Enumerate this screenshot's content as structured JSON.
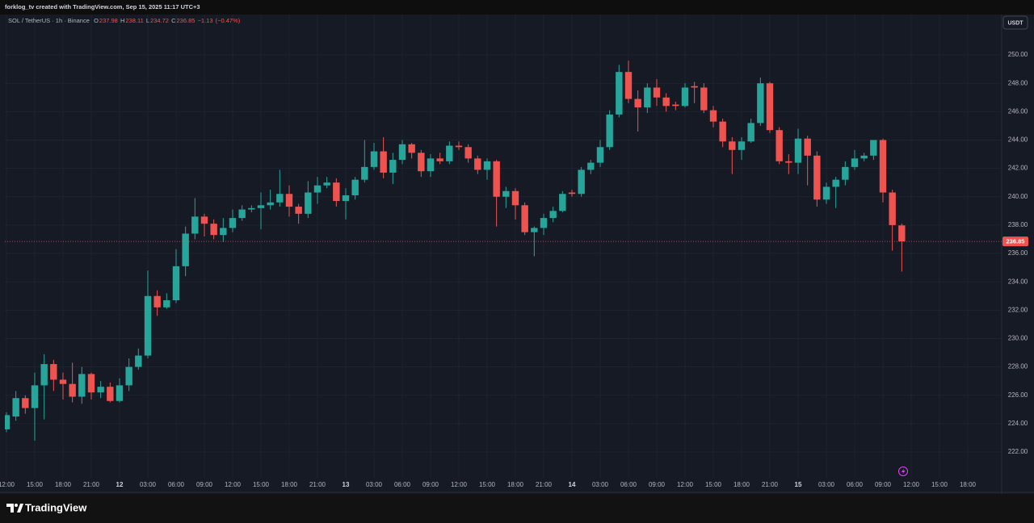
{
  "header": {
    "credit": "forklog_tv created with TradingView.com, Sep 15, 2025 11:17 UTC+3"
  },
  "footer": {
    "brand": "TradingView"
  },
  "chart_data": {
    "type": "candlestick",
    "title": "SOL / TetherUS · 1h · Binance",
    "legend_labels": [
      "O",
      "H",
      "L",
      "C"
    ],
    "change": {
      "value": -1.13,
      "label": "−1.13"
    },
    "change_pct": {
      "value": -0.47,
      "label": "(−0.47%)"
    },
    "currency": "USDT",
    "up_color": "#26a69a",
    "down_color": "#ef5350",
    "grid": true,
    "x": [
      0,
      1,
      2,
      3,
      4,
      5,
      6,
      7,
      8,
      9,
      10,
      11,
      12,
      13,
      14,
      15,
      16,
      17,
      18,
      19,
      20,
      21,
      22,
      23,
      24,
      25,
      26,
      27,
      28,
      29,
      30,
      31,
      32,
      33,
      34,
      35,
      36,
      37,
      38,
      39,
      40,
      41,
      42,
      43,
      44,
      45,
      46,
      47,
      48,
      49,
      50,
      51,
      52,
      53,
      54,
      55,
      56,
      57,
      58,
      59,
      60,
      61,
      62,
      63,
      64,
      65,
      66,
      67,
      68,
      69,
      70,
      71,
      72,
      73,
      74,
      75,
      76,
      77,
      78,
      79,
      80,
      81,
      82,
      83,
      84,
      85,
      86,
      87,
      88,
      89,
      90,
      91,
      92,
      93,
      94,
      95
    ],
    "open": [
      223.6,
      224.5,
      225.8,
      225.1,
      226.7,
      228.2,
      227.1,
      226.8,
      225.9,
      227.5,
      226.2,
      226.6,
      225.6,
      226.7,
      228.0,
      228.8,
      233.0,
      232.2,
      232.7,
      235.1,
      237.4,
      238.6,
      238.1,
      237.3,
      237.8,
      238.5,
      239.1,
      239.2,
      239.4,
      239.6,
      240.2,
      239.3,
      238.8,
      240.3,
      240.8,
      241.0,
      239.7,
      240.1,
      241.2,
      242.1,
      243.2,
      241.7,
      242.6,
      243.7,
      243.1,
      241.8,
      242.7,
      242.5,
      243.6,
      243.5,
      242.7,
      241.9,
      242.5,
      240.0,
      240.4,
      239.4,
      237.5,
      237.8,
      238.5,
      239.0,
      240.3,
      240.2,
      241.9,
      242.4,
      243.5,
      245.8,
      248.8,
      246.9,
      246.3,
      247.7,
      247.0,
      246.5,
      246.4,
      247.8,
      247.7,
      246.1,
      245.3,
      243.9,
      243.3,
      243.9,
      245.2,
      248.0,
      244.7,
      242.5,
      242.4,
      244.1,
      242.9,
      239.8,
      240.7,
      241.2,
      242.1,
      242.7,
      242.9,
      244.0,
      240.3,
      237.98
    ],
    "high": [
      224.8,
      226.3,
      226.0,
      227.6,
      228.9,
      228.5,
      227.6,
      228.3,
      228.0,
      227.6,
      227.0,
      226.9,
      227.2,
      228.6,
      229.3,
      234.8,
      233.4,
      233.2,
      236.3,
      237.9,
      239.9,
      238.8,
      238.4,
      238.5,
      239.1,
      239.4,
      239.4,
      240.3,
      240.5,
      241.9,
      240.8,
      239.5,
      241.1,
      241.4,
      241.4,
      241.3,
      240.6,
      241.4,
      244.0,
      243.8,
      244.2,
      243.1,
      244.0,
      243.8,
      243.3,
      243.0,
      243.1,
      243.9,
      243.9,
      243.7,
      242.9,
      242.7,
      242.6,
      240.7,
      240.6,
      239.6,
      237.9,
      238.8,
      239.3,
      240.4,
      240.5,
      242.1,
      242.6,
      244.0,
      246.1,
      249.3,
      249.6,
      247.5,
      248.0,
      248.3,
      247.3,
      246.7,
      248.0,
      248.1,
      248.0,
      246.4,
      245.5,
      244.2,
      244.2,
      245.5,
      248.4,
      248.1,
      244.9,
      243.0,
      244.8,
      244.3,
      243.2,
      241.0,
      241.4,
      242.5,
      243.3,
      243.1,
      244.0,
      244.1,
      240.5,
      238.11
    ],
    "low": [
      223.4,
      224.2,
      224.7,
      222.8,
      224.3,
      226.3,
      225.7,
      225.5,
      225.4,
      225.7,
      225.8,
      225.5,
      225.5,
      226.3,
      227.8,
      228.6,
      231.6,
      232.1,
      232.5,
      234.4,
      237.0,
      237.2,
      237.0,
      236.8,
      237.5,
      238.3,
      238.9,
      237.7,
      239.1,
      239.3,
      238.6,
      238.1,
      238.5,
      239.5,
      240.6,
      239.3,
      238.4,
      239.8,
      241.0,
      241.9,
      241.3,
      240.9,
      242.3,
      242.7,
      241.4,
      241.4,
      242.3,
      242.3,
      243.3,
      242.4,
      241.6,
      241.2,
      237.9,
      239.2,
      238.4,
      237.3,
      235.8,
      237.3,
      238.2,
      238.9,
      240.0,
      240.0,
      241.6,
      242.1,
      243.3,
      245.6,
      246.6,
      244.6,
      245.9,
      246.4,
      246.0,
      246.1,
      246.3,
      246.6,
      245.9,
      244.9,
      243.5,
      241.6,
      242.6,
      243.8,
      245.0,
      244.5,
      242.3,
      241.6,
      241.6,
      240.8,
      239.3,
      239.5,
      239.2,
      240.8,
      241.9,
      242.5,
      242.6,
      239.6,
      236.2,
      234.72
    ],
    "close": [
      224.6,
      225.8,
      225.1,
      226.7,
      228.2,
      227.1,
      226.8,
      225.9,
      227.5,
      226.2,
      226.6,
      225.6,
      226.7,
      228.0,
      228.8,
      233.0,
      232.2,
      232.7,
      235.1,
      237.4,
      238.6,
      238.1,
      237.3,
      237.8,
      238.5,
      239.1,
      239.2,
      239.4,
      239.6,
      240.2,
      239.3,
      238.8,
      240.3,
      240.8,
      241.0,
      239.7,
      240.1,
      241.2,
      242.1,
      243.2,
      241.7,
      242.6,
      243.7,
      243.1,
      241.8,
      242.7,
      242.5,
      243.6,
      243.5,
      242.7,
      241.9,
      242.5,
      240.0,
      240.4,
      239.4,
      237.5,
      237.8,
      238.5,
      239.0,
      240.2,
      240.2,
      241.9,
      242.4,
      243.5,
      245.8,
      248.8,
      246.9,
      246.3,
      247.7,
      247.0,
      246.4,
      246.4,
      247.7,
      247.7,
      246.1,
      245.3,
      243.9,
      243.3,
      243.9,
      245.2,
      248.0,
      244.7,
      242.5,
      242.4,
      244.1,
      242.9,
      239.8,
      240.7,
      241.2,
      242.1,
      242.7,
      242.9,
      244.0,
      240.3,
      238.0,
      236.85
    ],
    "xlim": [
      -0.17,
      105.6
    ],
    "ylim": [
      220.18,
      252.85
    ],
    "xticks": [
      {
        "value": 0,
        "label": "12:00"
      },
      {
        "value": 3,
        "label": "15:00"
      },
      {
        "value": 6,
        "label": "18:00"
      },
      {
        "value": 9,
        "label": "21:00"
      },
      {
        "value": 12,
        "label": "12"
      },
      {
        "value": 15,
        "label": "03:00"
      },
      {
        "value": 18,
        "label": "06:00"
      },
      {
        "value": 21,
        "label": "09:00"
      },
      {
        "value": 24,
        "label": "12:00"
      },
      {
        "value": 27,
        "label": "15:00"
      },
      {
        "value": 30,
        "label": "18:00"
      },
      {
        "value": 33,
        "label": "21:00"
      },
      {
        "value": 36,
        "label": "13"
      },
      {
        "value": 39,
        "label": "03:00"
      },
      {
        "value": 42,
        "label": "06:00"
      },
      {
        "value": 45,
        "label": "09:00"
      },
      {
        "value": 48,
        "label": "12:00"
      },
      {
        "value": 51,
        "label": "15:00"
      },
      {
        "value": 54,
        "label": "18:00"
      },
      {
        "value": 57,
        "label": "21:00"
      },
      {
        "value": 60,
        "label": "14"
      },
      {
        "value": 63,
        "label": "03:00"
      },
      {
        "value": 66,
        "label": "06:00"
      },
      {
        "value": 69,
        "label": "09:00"
      },
      {
        "value": 72,
        "label": "12:00"
      },
      {
        "value": 75,
        "label": "15:00"
      },
      {
        "value": 78,
        "label": "18:00"
      },
      {
        "value": 81,
        "label": "21:00"
      },
      {
        "value": 84,
        "label": "15"
      },
      {
        "value": 87,
        "label": "03:00"
      },
      {
        "value": 90,
        "label": "06:00"
      },
      {
        "value": 93,
        "label": "09:00"
      },
      {
        "value": 96,
        "label": "12:00"
      },
      {
        "value": 99,
        "label": "15:00"
      },
      {
        "value": 102,
        "label": "18:00"
      }
    ],
    "yticks": [
      {
        "value": 222,
        "label": "222.00"
      },
      {
        "value": 224,
        "label": "224.00"
      },
      {
        "value": 226,
        "label": "226.00"
      },
      {
        "value": 228,
        "label": "228.00"
      },
      {
        "value": 230,
        "label": "230.00"
      },
      {
        "value": 232,
        "label": "232.00"
      },
      {
        "value": 234,
        "label": "234.00"
      },
      {
        "value": 236,
        "label": "236.00"
      },
      {
        "value": 238,
        "label": "238.00"
      },
      {
        "value": 240,
        "label": "240.00"
      },
      {
        "value": 242,
        "label": "242.00"
      },
      {
        "value": 244,
        "label": "244.00"
      },
      {
        "value": 246,
        "label": "246.00"
      },
      {
        "value": 248,
        "label": "248.00"
      },
      {
        "value": 250,
        "label": "250.00"
      }
    ]
  }
}
